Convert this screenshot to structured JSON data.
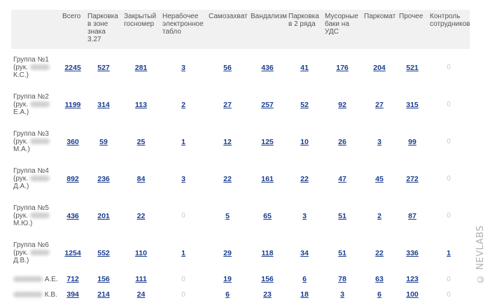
{
  "headers": [
    "",
    "Всего",
    "Парковка в зоне знака 3.27",
    "Закрытый госномер",
    "Нерабочее электронное табло",
    "Самозахват",
    "Вандализм",
    "Парковка в 2 ряда",
    "Мусорные баки на УДС",
    "Паркомат",
    "Прочее",
    "Контроль сотрудников"
  ],
  "rows": [
    {
      "line1": "Группа №1",
      "line2": "(рук.",
      "line3": "К.С.)",
      "values": [
        "2245",
        "527",
        "281",
        "3",
        "56",
        "436",
        "41",
        "176",
        "204",
        "521",
        "0"
      ]
    },
    {
      "line1": "Группа №2",
      "line2": "(рук.",
      "line3": "Е.А.)",
      "values": [
        "1199",
        "314",
        "113",
        "2",
        "27",
        "257",
        "52",
        "92",
        "27",
        "315",
        "0"
      ]
    },
    {
      "line1": "Группа №3",
      "line2": "(рук.",
      "line3": "М.А.)",
      "values": [
        "360",
        "59",
        "25",
        "1",
        "12",
        "125",
        "10",
        "26",
        "3",
        "99",
        "0"
      ]
    },
    {
      "line1": "Группа №4",
      "line2": "(рук.",
      "line3": "Д.А.)",
      "values": [
        "892",
        "236",
        "84",
        "3",
        "22",
        "161",
        "22",
        "47",
        "45",
        "272",
        "0"
      ]
    },
    {
      "line1": "Группа №5",
      "line2": "(рук.",
      "line3": "М.Ю.)",
      "values": [
        "436",
        "201",
        "22",
        "0",
        "5",
        "65",
        "3",
        "51",
        "2",
        "87",
        "0"
      ]
    },
    {
      "line1": "Группа №6",
      "line2": "(рук.",
      "line3": "Д.В.)",
      "values": [
        "1254",
        "552",
        "110",
        "1",
        "29",
        "118",
        "34",
        "51",
        "22",
        "336",
        "1"
      ]
    },
    {
      "line1": "",
      "line2": "",
      "line3": "А.Е.",
      "values": [
        "712",
        "156",
        "111",
        "0",
        "19",
        "156",
        "6",
        "78",
        "63",
        "123",
        "0"
      ]
    },
    {
      "line1": "",
      "line2": "",
      "line3": "К.В.",
      "values": [
        "394",
        "214",
        "24",
        "0",
        "6",
        "23",
        "18",
        "3",
        "6",
        "100",
        "0"
      ]
    }
  ],
  "watermark": "© NEVLABS",
  "colors": {
    "link": "#1a3d8f",
    "zero": "#c7c7c7",
    "header_bg": "#f1f1f1"
  }
}
